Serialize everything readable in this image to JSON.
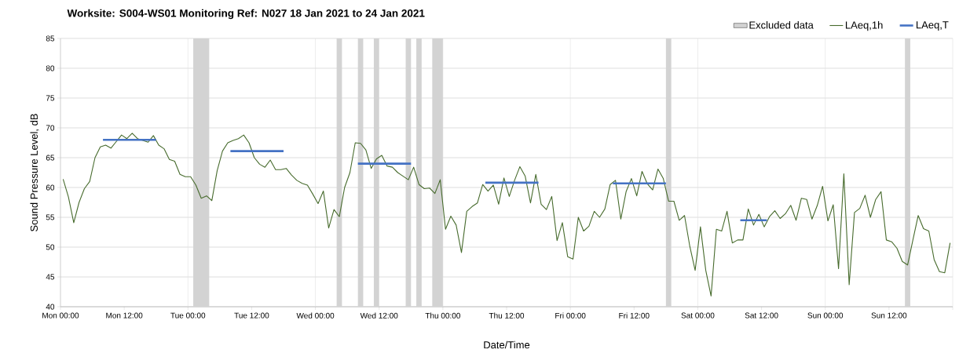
{
  "chart_data": {
    "type": "line",
    "title": "Worksite: S004-WS01    Monitoring Ref: N027    18 Jan 2021 to 24 Jan 2021",
    "xlabel": "Date/Time",
    "ylabel": "Sound Pressure Level, dB",
    "xlim": [
      "2021-01-18T00:00",
      "2021-01-25T00:00"
    ],
    "ylim": [
      40,
      85
    ],
    "xticks": [
      {
        "value": "2021-01-18T00:00",
        "label": "Mon 00:00"
      },
      {
        "value": "2021-01-18T12:00",
        "label": "Mon 12:00"
      },
      {
        "value": "2021-01-19T00:00",
        "label": "Tue 00:00"
      },
      {
        "value": "2021-01-19T12:00",
        "label": "Tue 12:00"
      },
      {
        "value": "2021-01-20T00:00",
        "label": "Wed 00:00"
      },
      {
        "value": "2021-01-20T12:00",
        "label": "Wed 12:00"
      },
      {
        "value": "2021-01-21T00:00",
        "label": "Thu 00:00"
      },
      {
        "value": "2021-01-21T12:00",
        "label": "Thu 12:00"
      },
      {
        "value": "2021-01-22T00:00",
        "label": "Fri 00:00"
      },
      {
        "value": "2021-01-22T12:00",
        "label": "Fri 12:00"
      },
      {
        "value": "2021-01-23T00:00",
        "label": "Sat 00:00"
      },
      {
        "value": "2021-01-23T12:00",
        "label": "Sat 12:00"
      },
      {
        "value": "2021-01-24T00:00",
        "label": "Sun 00:00"
      },
      {
        "value": "2021-01-24T12:00",
        "label": "Sun 12:00"
      },
      {
        "value": "2021-01-25T00:00",
        "label": null
      }
    ],
    "yticks": [
      40,
      45,
      50,
      55,
      60,
      65,
      70,
      75,
      80,
      85
    ],
    "grid": true,
    "legend": "top right",
    "marker": "none",
    "line_style": "solid",
    "bands": [
      {
        "axis": "x",
        "from": "2021-01-19T01:00",
        "to": "2021-01-19T04:00",
        "label": "Excluded data",
        "color": "#d3d3d3"
      },
      {
        "axis": "x",
        "from": "2021-01-20T04:00",
        "to": "2021-01-20T05:00",
        "color": "#d3d3d3"
      },
      {
        "axis": "x",
        "from": "2021-01-20T08:00",
        "to": "2021-01-20T09:00",
        "color": "#d3d3d3"
      },
      {
        "axis": "x",
        "from": "2021-01-20T11:00",
        "to": "2021-01-20T12:00",
        "color": "#d3d3d3"
      },
      {
        "axis": "x",
        "from": "2021-01-20T17:00",
        "to": "2021-01-20T18:00",
        "color": "#d3d3d3"
      },
      {
        "axis": "x",
        "from": "2021-01-20T19:00",
        "to": "2021-01-20T20:00",
        "color": "#d3d3d3"
      },
      {
        "axis": "x",
        "from": "2021-01-20T22:00",
        "to": "2021-01-21T00:00",
        "color": "#d3d3d3"
      },
      {
        "axis": "x",
        "from": "2021-01-22T18:00",
        "to": "2021-01-22T19:00",
        "color": "#d3d3d3"
      },
      {
        "axis": "x",
        "from": "2021-01-24T15:00",
        "to": "2021-01-24T16:00",
        "color": "#d3d3d3"
      }
    ],
    "series": [
      {
        "name": "LAeq,1h",
        "color": "#476b2d",
        "x": [
          "2021-01-18T00:30",
          "2021-01-18T01:30",
          "2021-01-18T02:30",
          "2021-01-18T03:30",
          "2021-01-18T04:30",
          "2021-01-18T05:30",
          "2021-01-18T06:30",
          "2021-01-18T07:30",
          "2021-01-18T08:30",
          "2021-01-18T09:30",
          "2021-01-18T10:30",
          "2021-01-18T11:30",
          "2021-01-18T12:30",
          "2021-01-18T13:30",
          "2021-01-18T14:30",
          "2021-01-18T15:30",
          "2021-01-18T16:30",
          "2021-01-18T17:30",
          "2021-01-18T18:30",
          "2021-01-18T19:30",
          "2021-01-18T20:30",
          "2021-01-18T21:30",
          "2021-01-18T22:30",
          "2021-01-18T23:30",
          "2021-01-19T00:30",
          "2021-01-19T01:30",
          "2021-01-19T02:30",
          "2021-01-19T03:30",
          "2021-01-19T04:30",
          "2021-01-19T05:30",
          "2021-01-19T06:30",
          "2021-01-19T07:30",
          "2021-01-19T08:30",
          "2021-01-19T09:30",
          "2021-01-19T10:30",
          "2021-01-19T11:30",
          "2021-01-19T12:30",
          "2021-01-19T13:30",
          "2021-01-19T14:30",
          "2021-01-19T15:30",
          "2021-01-19T16:30",
          "2021-01-19T17:30",
          "2021-01-19T18:30",
          "2021-01-19T19:30",
          "2021-01-19T20:30",
          "2021-01-19T21:30",
          "2021-01-19T22:30",
          "2021-01-19T23:30",
          "2021-01-20T00:30",
          "2021-01-20T01:30",
          "2021-01-20T02:30",
          "2021-01-20T03:30",
          "2021-01-20T04:30",
          "2021-01-20T05:30",
          "2021-01-20T06:30",
          "2021-01-20T07:30",
          "2021-01-20T08:30",
          "2021-01-20T09:30",
          "2021-01-20T10:30",
          "2021-01-20T11:30",
          "2021-01-20T12:30",
          "2021-01-20T13:30",
          "2021-01-20T14:30",
          "2021-01-20T15:30",
          "2021-01-20T16:30",
          "2021-01-20T17:30",
          "2021-01-20T18:30",
          "2021-01-20T19:30",
          "2021-01-20T20:30",
          "2021-01-20T21:30",
          "2021-01-20T22:30",
          "2021-01-20T23:30",
          "2021-01-21T00:30",
          "2021-01-21T01:30",
          "2021-01-21T02:30",
          "2021-01-21T03:30",
          "2021-01-21T04:30",
          "2021-01-21T05:30",
          "2021-01-21T06:30",
          "2021-01-21T07:30",
          "2021-01-21T08:30",
          "2021-01-21T09:30",
          "2021-01-21T10:30",
          "2021-01-21T11:30",
          "2021-01-21T12:30",
          "2021-01-21T13:30",
          "2021-01-21T14:30",
          "2021-01-21T15:30",
          "2021-01-21T16:30",
          "2021-01-21T17:30",
          "2021-01-21T18:30",
          "2021-01-21T19:30",
          "2021-01-21T20:30",
          "2021-01-21T21:30",
          "2021-01-21T22:30",
          "2021-01-21T23:30",
          "2021-01-22T00:30",
          "2021-01-22T01:30",
          "2021-01-22T02:30",
          "2021-01-22T03:30",
          "2021-01-22T04:30",
          "2021-01-22T05:30",
          "2021-01-22T06:30",
          "2021-01-22T07:30",
          "2021-01-22T08:30",
          "2021-01-22T09:30",
          "2021-01-22T10:30",
          "2021-01-22T11:30",
          "2021-01-22T12:30",
          "2021-01-22T13:30",
          "2021-01-22T14:30",
          "2021-01-22T15:30",
          "2021-01-22T16:30",
          "2021-01-22T17:30",
          "2021-01-22T18:30",
          "2021-01-22T19:30",
          "2021-01-22T20:30",
          "2021-01-22T21:30",
          "2021-01-22T22:30",
          "2021-01-22T23:30",
          "2021-01-23T00:30",
          "2021-01-23T01:30",
          "2021-01-23T02:30",
          "2021-01-23T03:30",
          "2021-01-23T04:30",
          "2021-01-23T05:30",
          "2021-01-23T06:30",
          "2021-01-23T07:30",
          "2021-01-23T08:30",
          "2021-01-23T09:30",
          "2021-01-23T10:30",
          "2021-01-23T11:30",
          "2021-01-23T12:30",
          "2021-01-23T13:30",
          "2021-01-23T14:30",
          "2021-01-23T15:30",
          "2021-01-23T16:30",
          "2021-01-23T17:30",
          "2021-01-23T18:30",
          "2021-01-23T19:30",
          "2021-01-23T20:30",
          "2021-01-23T21:30",
          "2021-01-23T22:30",
          "2021-01-23T23:30",
          "2021-01-24T00:30",
          "2021-01-24T01:30",
          "2021-01-24T02:30",
          "2021-01-24T03:30",
          "2021-01-24T04:30",
          "2021-01-24T05:30",
          "2021-01-24T06:30",
          "2021-01-24T07:30",
          "2021-01-24T08:30",
          "2021-01-24T09:30",
          "2021-01-24T10:30",
          "2021-01-24T11:30",
          "2021-01-24T12:30",
          "2021-01-24T13:30",
          "2021-01-24T14:30",
          "2021-01-24T15:30",
          "2021-01-24T16:30",
          "2021-01-24T17:30",
          "2021-01-24T18:30",
          "2021-01-24T19:30",
          "2021-01-24T20:30",
          "2021-01-24T21:30",
          "2021-01-24T22:30",
          "2021-01-24T23:30"
        ],
        "values": [
          61.4,
          58.4,
          54.1,
          57.5,
          59.8,
          61.0,
          65.0,
          66.8,
          67.1,
          66.6,
          67.7,
          68.8,
          68.2,
          69.1,
          68.2,
          67.9,
          67.6,
          68.7,
          67.1,
          66.5,
          64.7,
          64.4,
          62.2,
          61.8,
          61.8,
          60.4,
          58.2,
          58.6,
          57.8,
          62.8,
          66.1,
          67.5,
          67.9,
          68.2,
          68.8,
          67.5,
          65.0,
          63.9,
          63.4,
          64.6,
          63.0,
          63.0,
          63.2,
          62.1,
          61.2,
          60.7,
          60.4,
          58.9,
          57.3,
          59.4,
          53.2,
          56.3,
          55.1,
          60.0,
          62.5,
          67.5,
          67.4,
          66.3,
          63.2,
          64.8,
          65.4,
          63.6,
          63.4,
          62.5,
          61.9,
          61.3,
          63.4,
          60.5,
          59.8,
          59.9,
          59.0,
          61.3,
          53.0,
          55.2,
          53.7,
          49.1,
          56.0,
          56.8,
          57.4,
          60.5,
          59.4,
          60.4,
          57.2,
          61.6,
          58.5,
          61.2,
          63.5,
          61.9,
          57.4,
          62.2,
          57.2,
          56.3,
          58.5,
          51.1,
          54.1,
          48.4,
          48.0,
          55.0,
          52.7,
          53.5,
          56.0,
          55.0,
          56.4,
          60.5,
          61.2,
          54.7,
          59.3,
          61.5,
          58.6,
          62.7,
          60.6,
          59.6,
          63.1,
          61.5,
          57.7,
          57.7,
          54.5,
          55.3,
          50.1,
          46.1,
          53.4,
          46.1,
          41.8,
          53.0,
          52.7,
          56.0,
          50.7,
          51.2,
          51.2,
          56.4,
          53.7,
          55.5,
          53.4,
          55.1,
          56.1,
          54.8,
          55.6,
          57.0,
          54.5,
          58.2,
          58.0,
          54.7,
          57.0,
          60.2,
          54.4,
          57.1,
          46.4,
          62.3,
          43.7,
          55.8,
          56.5,
          58.7,
          55.0,
          58.0,
          59.3,
          51.2,
          50.9,
          49.8,
          47.6,
          47.0,
          51.2,
          55.3,
          53.1,
          52.7,
          47.9,
          45.9,
          45.7,
          50.7
        ]
      },
      {
        "name": "LAeq,T",
        "color": "#4472c4",
        "x": [
          "2021-01-18T08:00",
          "2021-01-18T18:00",
          "2021-01-19T01:00",
          "2021-01-19T08:00",
          "2021-01-19T18:00",
          "2021-01-20T02:00",
          "2021-01-20T08:00",
          "2021-01-20T18:00",
          "2021-01-21T02:00",
          "2021-01-21T08:00",
          "2021-01-21T18:00",
          "2021-01-22T02:00",
          "2021-01-22T08:00",
          "2021-01-22T18:00",
          "2021-01-23T02:00",
          "2021-01-23T08:00",
          "2021-01-23T13:00"
        ],
        "values": [
          68,
          68,
          null,
          66.1,
          66.1,
          null,
          64,
          64,
          null,
          60.8,
          60.8,
          null,
          60.7,
          60.7,
          null,
          54.5,
          54.5
        ]
      }
    ]
  }
}
